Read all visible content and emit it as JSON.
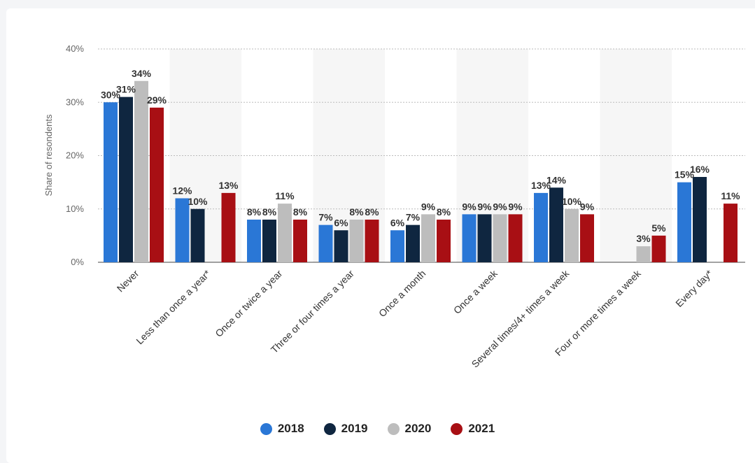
{
  "chart_data": {
    "type": "bar",
    "ylabel": "Share of resondents",
    "ylim": [
      0,
      40
    ],
    "yticks": [
      "0%",
      "10%",
      "20%",
      "30%",
      "40%"
    ],
    "grid": true,
    "legend_position": "bottom",
    "categories": [
      "Never",
      "Less than once a year*",
      "Once or twice a year",
      "Three or four times a year",
      "Once a month",
      "Once a week",
      "Several times/4+ times a week",
      "Four or more times a week",
      "Every day*"
    ],
    "series": [
      {
        "name": "2018",
        "color": "#2a77d6",
        "values": [
          30,
          12,
          8,
          7,
          6,
          9,
          13,
          null,
          15
        ]
      },
      {
        "name": "2019",
        "color": "#0f2640",
        "values": [
          31,
          10,
          8,
          6,
          7,
          9,
          14,
          null,
          16
        ]
      },
      {
        "name": "2020",
        "color": "#bdbdbd",
        "values": [
          34,
          null,
          11,
          8,
          9,
          9,
          10,
          3,
          null
        ]
      },
      {
        "name": "2021",
        "color": "#a80f14",
        "values": [
          29,
          13,
          8,
          8,
          8,
          9,
          9,
          5,
          11
        ]
      }
    ]
  }
}
